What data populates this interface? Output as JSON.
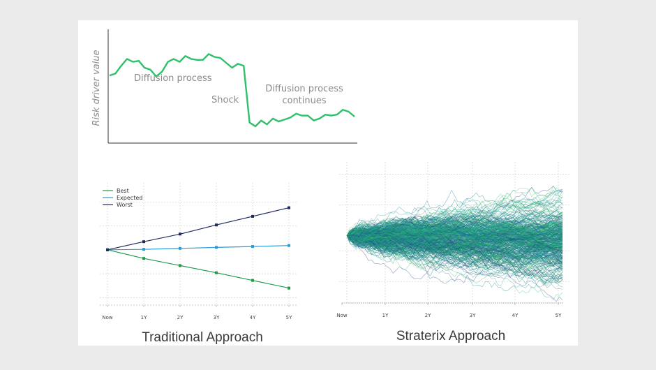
{
  "colors": {
    "background": "#ebebeb",
    "panel": "#ffffff",
    "risk_line": "#2ec06a",
    "best": "#1e9a48",
    "expected": "#2c9bd6",
    "worst": "#1f2a5a",
    "sim_palette": [
      "#1a9a7a",
      "#23b07a",
      "#157f8f",
      "#2a8fb5",
      "#2c3e88",
      "#3bbf6a",
      "#0f6f6f"
    ]
  },
  "chart_data": [
    {
      "type": "line",
      "ylabel": "Risk driver value",
      "xlabel": "",
      "grid": false,
      "annotations": [
        {
          "id": "diffusion1",
          "text": "Diffusion process"
        },
        {
          "id": "shock",
          "text": "Shock"
        },
        {
          "id": "diffusion2_line1",
          "text": "Diffusion process"
        },
        {
          "id": "diffusion2_line2",
          "text": "continues"
        }
      ],
      "series": [
        {
          "values": [
            62,
            64,
            72,
            79,
            76,
            77,
            70,
            68,
            61,
            66,
            76,
            79,
            76,
            82,
            79,
            78,
            78,
            84,
            81,
            80,
            75,
            70,
            74,
            72,
            14,
            10,
            16,
            12,
            18,
            15,
            17,
            19,
            23,
            21,
            21,
            16,
            18,
            22,
            21,
            22,
            27,
            25,
            20
          ]
        }
      ]
    },
    {
      "type": "line",
      "caption": "Traditional Approach",
      "categories": [
        "Now",
        "1Y",
        "2Y",
        "3Y",
        "4Y",
        "5Y"
      ],
      "ylim": [
        -1.2,
        1.4
      ],
      "grid": true,
      "legend_position": "top-left",
      "series": [
        {
          "name": "Best",
          "values": [
            0,
            -0.18,
            -0.33,
            -0.48,
            -0.64,
            -0.8
          ]
        },
        {
          "name": "Expected",
          "values": [
            0,
            0.01,
            0.03,
            0.05,
            0.07,
            0.09
          ]
        },
        {
          "name": "Worst",
          "values": [
            0,
            0.17,
            0.33,
            0.52,
            0.7,
            0.88
          ]
        }
      ]
    },
    {
      "type": "line",
      "caption": "Straterix Approach",
      "categories": [
        "Now",
        "1Y",
        "2Y",
        "3Y",
        "4Y",
        "5Y"
      ],
      "ylim": [
        -2.2,
        2.4
      ],
      "grid": true,
      "description_series_count": 420,
      "spread_at_5Y": [
        -1.9,
        2.2
      ]
    }
  ]
}
